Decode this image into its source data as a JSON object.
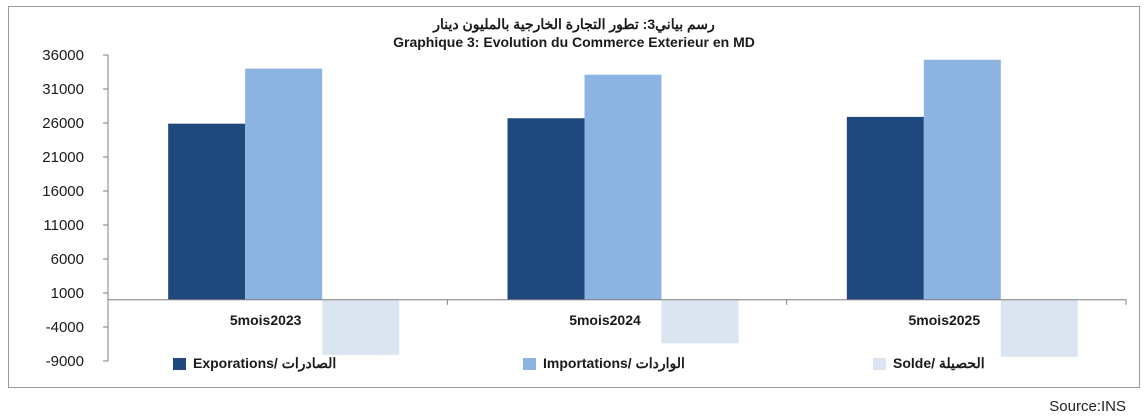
{
  "chart_data": {
    "type": "bar",
    "title": "رسم بياني3: تطور التجارة الخارجية بالمليون دينار",
    "subtitle": "Graphique 3: Evolution du Commerce Exterieur en MD",
    "categories": [
      "5mois2023",
      "5mois2024",
      "5mois2025"
    ],
    "series": [
      {
        "name": "Exporations/ الصادرات",
        "values": [
          25900,
          26700,
          26900
        ],
        "color": "#1f497d"
      },
      {
        "name": "Importations/ الواردات",
        "values": [
          34000,
          33100,
          35300
        ],
        "color": "#8db3e2"
      },
      {
        "name": "Solde/ الحصيلة",
        "values": [
          -8100,
          -6400,
          -8400
        ],
        "color": "#dbe5f1"
      }
    ],
    "y_ticks": [
      "36000",
      "31000",
      "26000",
      "21000",
      "16000",
      "11000",
      "6000",
      "1000",
      "-4000",
      "-9000"
    ],
    "ylim": [
      -9000,
      36000
    ],
    "grid": false,
    "legend_position": "bottom",
    "source": "Source:INS"
  }
}
